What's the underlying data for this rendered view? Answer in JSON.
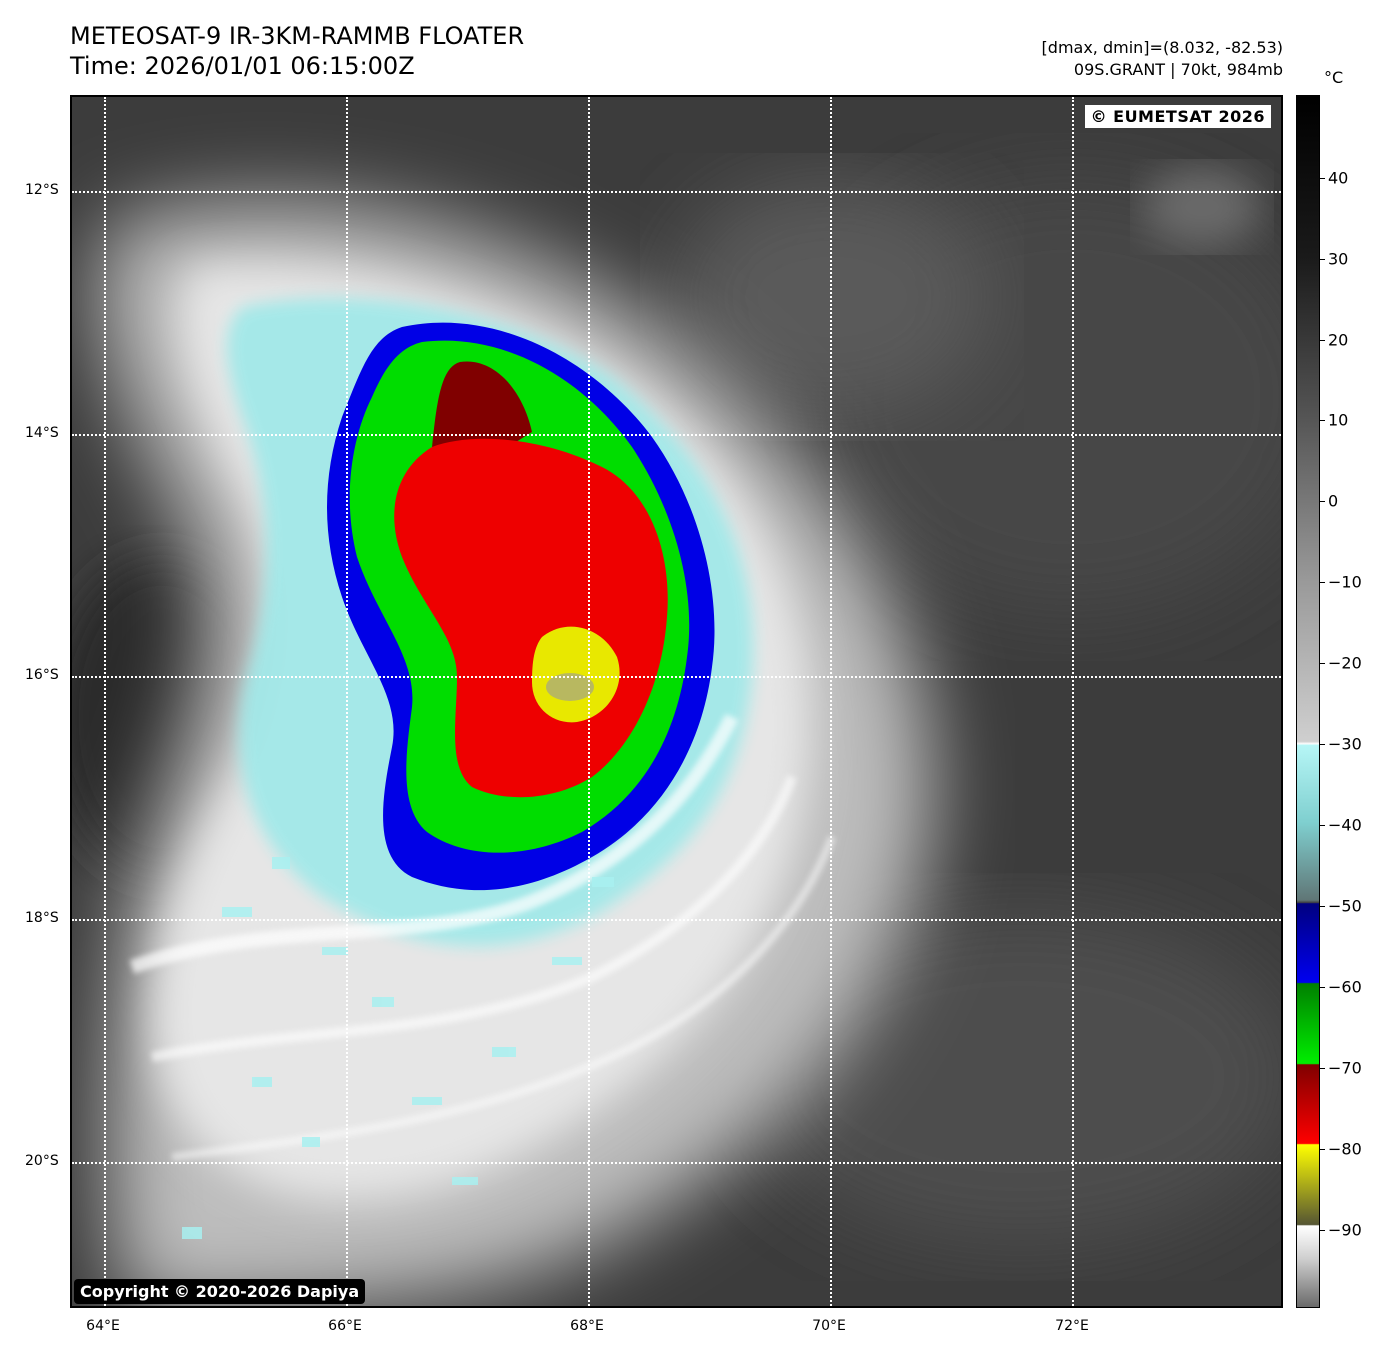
{
  "header": {
    "title_line1": "METEOSAT-9 IR-3KM-RAMMB FLOATER",
    "title_line2": "Time: 2026/01/01 06:15:00Z",
    "dmax_dmin": "[dmax, dmin]=(8.032, -82.53)",
    "storm_info": "09S.GRANT | 70kt, 984mb"
  },
  "map": {
    "eumetsat_credit": "© EUMETSAT 2026",
    "copyright": "Copyright © 2020-2026 Dapiya",
    "lat_labels": [
      "12°S",
      "14°S",
      "16°S",
      "18°S",
      "20°S"
    ],
    "lon_labels": [
      "64°E",
      "66°E",
      "68°E",
      "70°E",
      "72°E"
    ]
  },
  "colorbar": {
    "unit": "°C",
    "tick_labels": [
      "40",
      "30",
      "20",
      "10",
      "0",
      "−10",
      "−20",
      "−30",
      "−40",
      "−50",
      "−60",
      "−70",
      "−80",
      "−90"
    ],
    "colors": {
      "warm_top": "#000000",
      "cloud_white": "#ffffff",
      "cyan": "#b6f6f6",
      "blue": "#0000f0",
      "green": "#00ee00",
      "dark_red": "#800000",
      "red": "#ff0000",
      "yellow": "#ffff00"
    }
  }
}
